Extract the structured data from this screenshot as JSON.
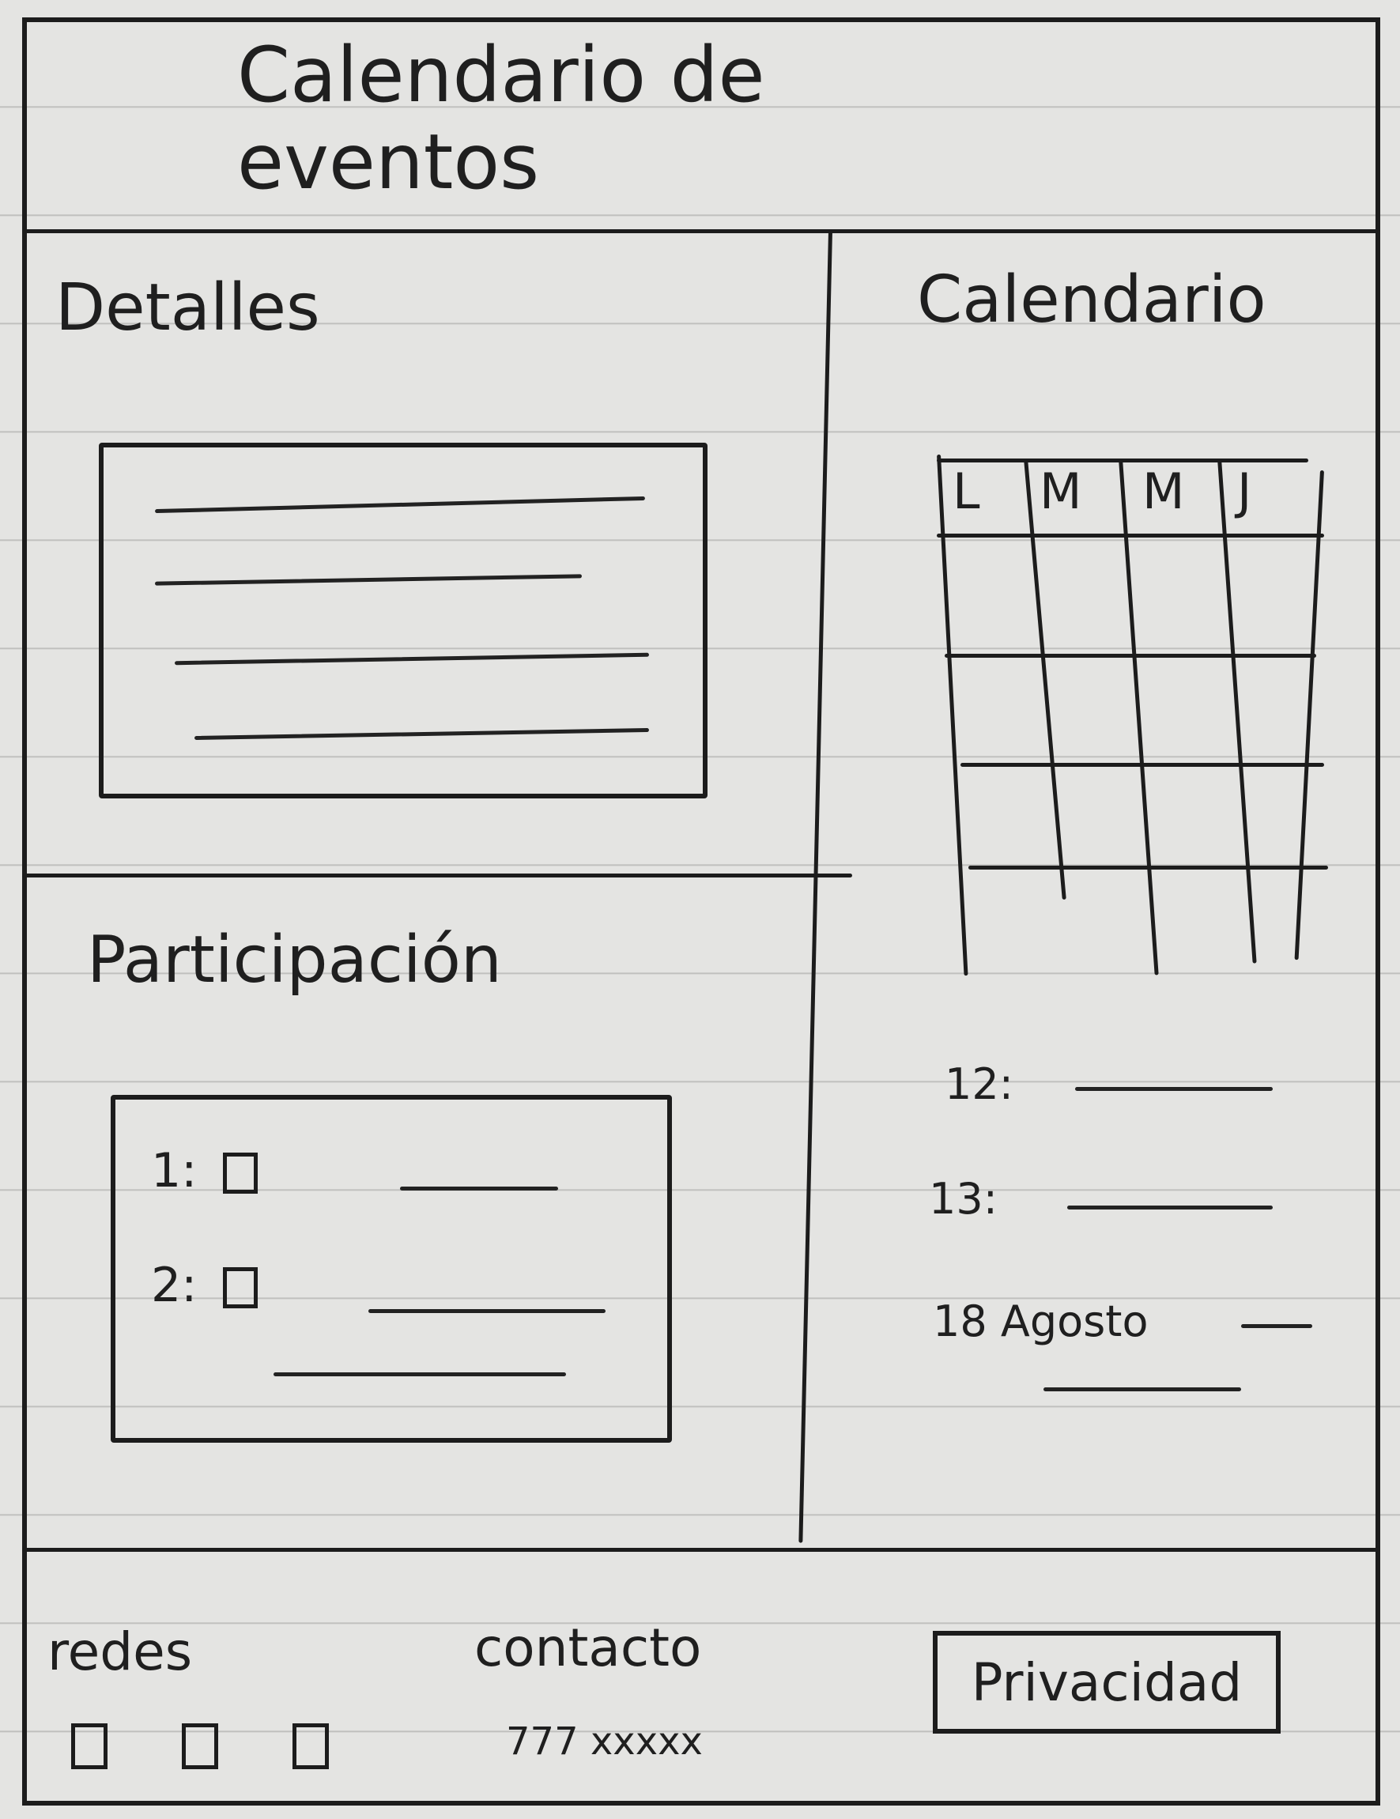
{
  "header": {
    "title": "Calendario de eventos"
  },
  "details": {
    "heading": "Detalles"
  },
  "participation": {
    "heading": "Participación",
    "options": [
      {
        "label": "1:"
      },
      {
        "label": "2:"
      }
    ]
  },
  "calendar": {
    "heading": "Calendario",
    "days": [
      "L",
      "M",
      "M",
      "J"
    ]
  },
  "events": [
    {
      "label": "12:"
    },
    {
      "label": "13:"
    },
    {
      "label": "18 Agosto"
    }
  ],
  "footer": {
    "social_label": "redes",
    "social_icons": [
      "social-icon-1",
      "social-icon-2",
      "social-icon-3"
    ],
    "contact_label": "contacto",
    "contact_value": "777 xxxxx",
    "privacy_button": "Privacidad"
  }
}
